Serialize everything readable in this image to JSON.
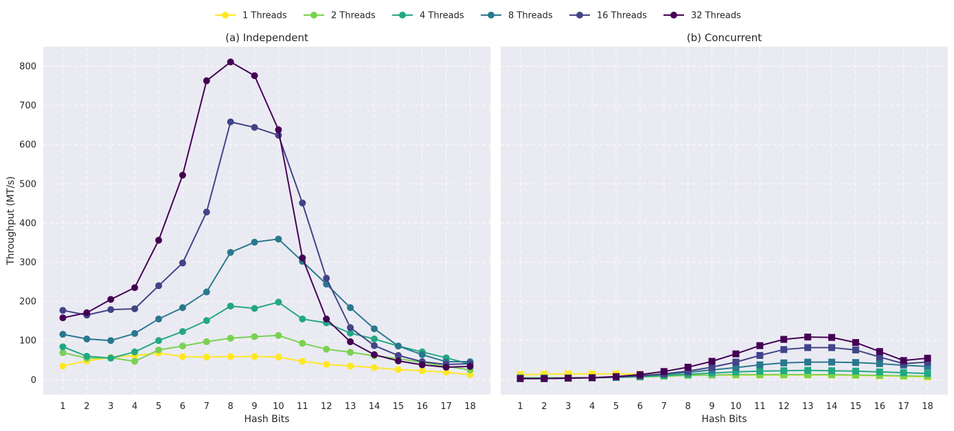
{
  "chart_data": {
    "type": "line",
    "legend": {
      "placement": "top-center",
      "entries": [
        "1 Threads",
        "2 Threads",
        "4 Threads",
        "8 Threads",
        "16 Threads",
        "32 Threads"
      ]
    },
    "ylabel": "Throughput (MT/s)",
    "xlabel": "Hash Bits",
    "x": [
      1,
      2,
      3,
      4,
      5,
      6,
      7,
      8,
      9,
      10,
      11,
      12,
      13,
      14,
      15,
      16,
      17,
      18
    ],
    "yticks": [
      0,
      100,
      200,
      300,
      400,
      500,
      600,
      700,
      800
    ],
    "ylim": [
      -38,
      850
    ],
    "grid": true,
    "colors": [
      "#fde725",
      "#7ad151",
      "#22a884",
      "#2a788e",
      "#414487",
      "#440154"
    ],
    "panels": [
      {
        "title": "(a) Independent",
        "marker": "circle",
        "series": [
          {
            "name": "1 Threads",
            "values": [
              35,
              48,
              57,
              62,
              68,
              59,
              58,
              59,
              59,
              58,
              47,
              39,
              35,
              31,
              26,
              23,
              19,
              13
            ]
          },
          {
            "name": "2 Threads",
            "values": [
              69,
              55,
              56,
              47,
              76,
              86,
              97,
              106,
              110,
              113,
              93,
              78,
              70,
              61,
              54,
              44,
              34,
              25
            ]
          },
          {
            "name": "4 Threads",
            "values": [
              84,
              60,
              55,
              71,
              100,
              123,
              151,
              188,
              182,
              198,
              155,
              145,
              119,
              104,
              86,
              71,
              56,
              40
            ]
          },
          {
            "name": "8 Threads",
            "values": [
              116,
              104,
              100,
              118,
              155,
              184,
              224,
              325,
              351,
              359,
              302,
              244,
              184,
              130,
              86,
              64,
              46,
              46
            ]
          },
          {
            "name": "16 Threads",
            "values": [
              177,
              165,
              179,
              181,
              240,
              298,
              428,
              658,
              644,
              624,
              451,
              259,
              133,
              87,
              62,
              46,
              39,
              41
            ]
          },
          {
            "name": "32 Threads",
            "values": [
              158,
              171,
              205,
              235,
              356,
              522,
              763,
              811,
              776,
              638,
              311,
              155,
              97,
              64,
              48,
              38,
              32,
              34
            ]
          }
        ]
      },
      {
        "title": "(b) Concurrent",
        "marker": "square",
        "series": [
          {
            "name": "1 Threads",
            "values": [
              13,
              14,
              15,
              15,
              15,
              14,
              13,
              12,
              12,
              12,
              12,
              12,
              12,
              12,
              11,
              10,
              9,
              7
            ]
          },
          {
            "name": "2 Threads",
            "values": [
              5,
              5,
              5,
              5,
              6,
              7,
              9,
              11,
              12,
              13,
              13,
              13,
              13,
              13,
              12,
              11,
              10,
              9
            ]
          },
          {
            "name": "4 Threads",
            "values": [
              4,
              4,
              4,
              5,
              6,
              8,
              11,
              14,
              17,
              20,
              22,
              23,
              24,
              23,
              22,
              20,
              18,
              16
            ]
          },
          {
            "name": "8 Threads",
            "values": [
              3,
              3,
              4,
              5,
              7,
              10,
              14,
              19,
              25,
              31,
              38,
              43,
              45,
              45,
              44,
              41,
              37,
              34
            ]
          },
          {
            "name": "16 Threads",
            "values": [
              3,
              3,
              4,
              5,
              7,
              10,
              15,
              22,
              32,
              45,
              62,
              77,
              82,
              82,
              76,
              58,
              41,
              45
            ]
          },
          {
            "name": "32 Threads",
            "values": [
              3,
              3,
              4,
              5,
              8,
              13,
              21,
              32,
              47,
              66,
              87,
              103,
              109,
              108,
              95,
              72,
              49,
              55
            ]
          }
        ]
      }
    ]
  }
}
